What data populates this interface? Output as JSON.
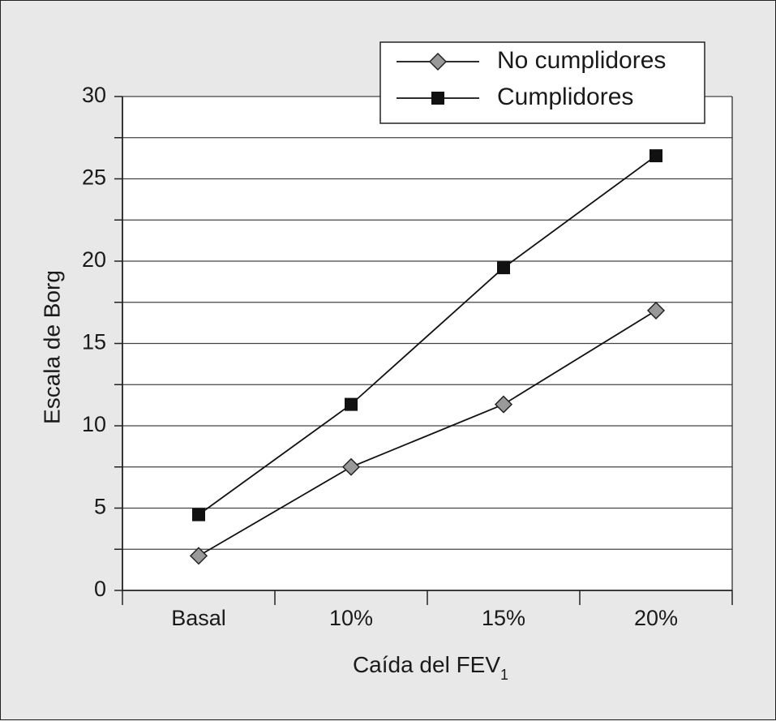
{
  "chart_data": {
    "type": "line",
    "xlabel": "Caída del FEV",
    "xlabel_subscript": "1",
    "ylabel": "Escala de Borg",
    "categories": [
      "Basal",
      "10%",
      "15%",
      "20%"
    ],
    "ylim": [
      0,
      30
    ],
    "yticks": [
      0,
      5,
      10,
      15,
      20,
      25,
      30
    ],
    "grid": true,
    "legend_position": "top-right",
    "series": [
      {
        "name": "No cumplidores",
        "marker": "diamond",
        "color": "#999999",
        "values": [
          2.1,
          7.5,
          11.3,
          17.0
        ]
      },
      {
        "name": "Cumplidores",
        "marker": "square",
        "color": "#111111",
        "values": [
          4.6,
          11.3,
          19.6,
          26.4
        ]
      }
    ]
  }
}
